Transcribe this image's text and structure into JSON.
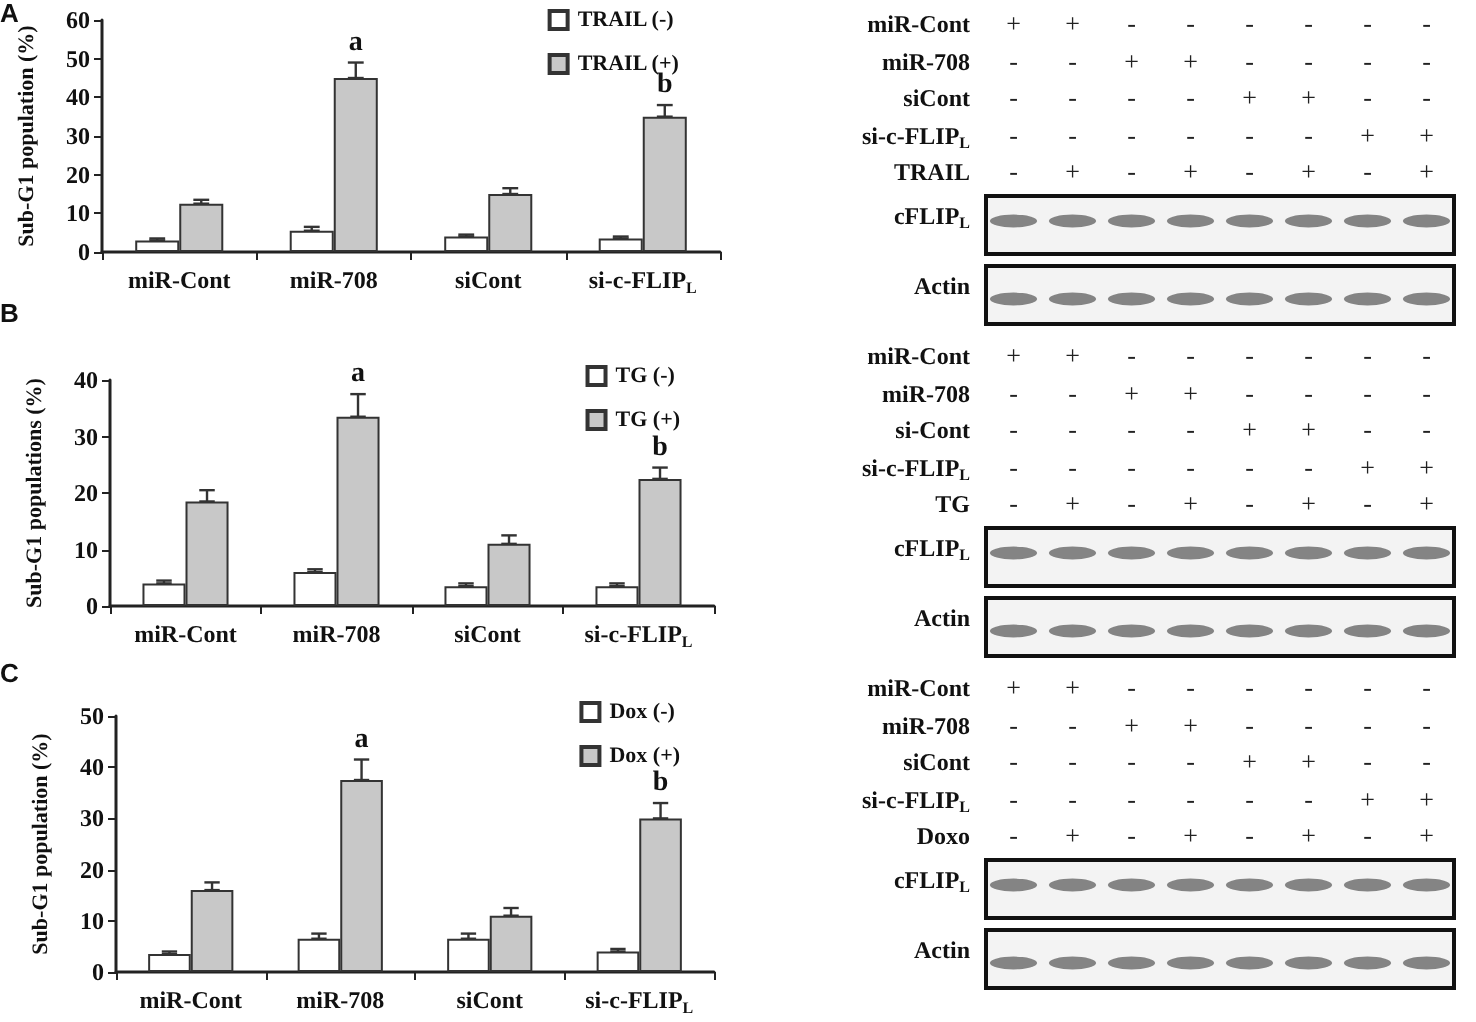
{
  "chart_data": [
    {
      "type": "bar",
      "title": "A",
      "ylabel": "Sub-G1 population (%)",
      "categories": [
        "miR-Cont",
        "miR-708",
        "siCont",
        "si-c-FLIP$_{L}$"
      ],
      "series": [
        {
          "name": "TRAIL (-)",
          "color": "#ffffff",
          "values": [
            3,
            5.5,
            4,
            3.5
          ],
          "errors": [
            [
              3,
              3.5
            ],
            [
              5.5,
              6.5
            ],
            [
              4,
              4.5
            ],
            [
              3.5,
              4
            ]
          ]
        },
        {
          "name": "TRAIL (+)",
          "color": "#c8c8c8",
          "values": [
            12.5,
            45,
            15,
            35
          ],
          "errors": [
            [
              12.5,
              13.5
            ],
            [
              45,
              49
            ],
            [
              15,
              16.5
            ],
            [
              35,
              38
            ]
          ],
          "value_labels": [
            null,
            "a",
            null,
            "b"
          ]
        }
      ],
      "ylim": [
        0,
        60
      ],
      "yticks": [
        0,
        10,
        20,
        30,
        40,
        50,
        60
      ],
      "legend": "top right"
    },
    {
      "type": "other",
      "y_categories": [
        "miR-Cont",
        "miR-708",
        "siCont",
        "si-c-FLIP$_{L}$",
        "TRAIL"
      ],
      "cell_labels": [
        [
          "+",
          "+",
          "-",
          "-",
          "-",
          "-",
          "-",
          "-"
        ],
        [
          "-",
          "-",
          "+",
          "+",
          "-",
          "-",
          "-",
          "-"
        ],
        [
          "-",
          "-",
          "-",
          "-",
          "+",
          "+",
          "-",
          "-"
        ],
        [
          "-",
          "-",
          "-",
          "-",
          "-",
          "-",
          "+",
          "+"
        ],
        [
          "-",
          "+",
          "-",
          "+",
          "-",
          "+",
          "-",
          "+"
        ]
      ],
      "annotations": [
        "cFLIP$_{L}$",
        "Actin"
      ]
    },
    {
      "type": "bar",
      "title": "B",
      "ylabel": "Sub-G1 populations (%)",
      "categories": [
        "miR-Cont",
        "miR-708",
        "siCont",
        "si-c-FLIP$_{L}$"
      ],
      "series": [
        {
          "name": "TG (-)",
          "color": "#ffffff",
          "values": [
            4,
            6,
            3.5,
            3.5
          ],
          "errors": [
            [
              4,
              4.5
            ],
            [
              6,
              6.5
            ],
            [
              3.5,
              4
            ],
            [
              3.5,
              4
            ]
          ]
        },
        {
          "name": "TG (+)",
          "color": "#c8c8c8",
          "values": [
            18.5,
            33.5,
            11,
            22.5
          ],
          "errors": [
            [
              18.5,
              20.5
            ],
            [
              33.5,
              37.5
            ],
            [
              11,
              12.5
            ],
            [
              22.5,
              24.5
            ]
          ],
          "value_labels": [
            null,
            "a",
            null,
            "b"
          ]
        }
      ],
      "ylim": [
        0,
        40
      ],
      "yticks": [
        0,
        10,
        20,
        30,
        40
      ],
      "legend": "top right"
    },
    {
      "type": "other",
      "y_categories": [
        "miR-Cont",
        "miR-708",
        "si-Cont",
        "si-c-FLIP$_{L}$",
        "TG"
      ],
      "cell_labels": [
        [
          "+",
          "+",
          "-",
          "-",
          "-",
          "-",
          "-",
          "-"
        ],
        [
          "-",
          "-",
          "+",
          "+",
          "-",
          "-",
          "-",
          "-"
        ],
        [
          "-",
          "-",
          "-",
          "-",
          "+",
          "+",
          "-",
          "-"
        ],
        [
          "-",
          "-",
          "-",
          "-",
          "-",
          "-",
          "+",
          "+"
        ],
        [
          "-",
          "+",
          "-",
          "+",
          "-",
          "+",
          "-",
          "+"
        ]
      ],
      "annotations": [
        "cFLIP$_{L}$",
        "Actin"
      ]
    },
    {
      "type": "bar",
      "title": "C",
      "ylabel": "Sub-G1 population (%)",
      "categories": [
        "miR-Cont",
        "miR-708",
        "siCont",
        "si-c-FLIP$_{L}$"
      ],
      "series": [
        {
          "name": "Dox (-)",
          "color": "#ffffff",
          "values": [
            3.5,
            6.5,
            6.5,
            4
          ],
          "errors": [
            [
              3.5,
              4
            ],
            [
              6.5,
              7.5
            ],
            [
              6.5,
              7.5
            ],
            [
              4,
              4.5
            ]
          ]
        },
        {
          "name": "Dox (+)",
          "color": "#c8c8c8",
          "values": [
            16,
            37.5,
            11,
            30
          ],
          "errors": [
            [
              16,
              17.5
            ],
            [
              37.5,
              41.5
            ],
            [
              11,
              12.5
            ],
            [
              30,
              33
            ]
          ],
          "value_labels": [
            null,
            "a",
            null,
            "b"
          ]
        }
      ],
      "ylim": [
        0,
        50
      ],
      "yticks": [
        0,
        10,
        20,
        30,
        40,
        50
      ],
      "legend": "top right"
    },
    {
      "type": "other",
      "y_categories": [
        "miR-Cont",
        "miR-708",
        "siCont",
        "si-c-FLIP$_{L}$",
        "Doxo"
      ],
      "cell_labels": [
        [
          "+",
          "+",
          "-",
          "-",
          "-",
          "-",
          "-",
          "-"
        ],
        [
          "-",
          "-",
          "+",
          "+",
          "-",
          "-",
          "-",
          "-"
        ],
        [
          "-",
          "-",
          "-",
          "-",
          "+",
          "+",
          "-",
          "-"
        ],
        [
          "-",
          "-",
          "-",
          "-",
          "-",
          "-",
          "+",
          "+"
        ],
        [
          "-",
          "+",
          "-",
          "+",
          "-",
          "+",
          "-",
          "+"
        ]
      ],
      "annotations": [
        "cFLIP$_{L}$",
        "Actin"
      ]
    }
  ]
}
